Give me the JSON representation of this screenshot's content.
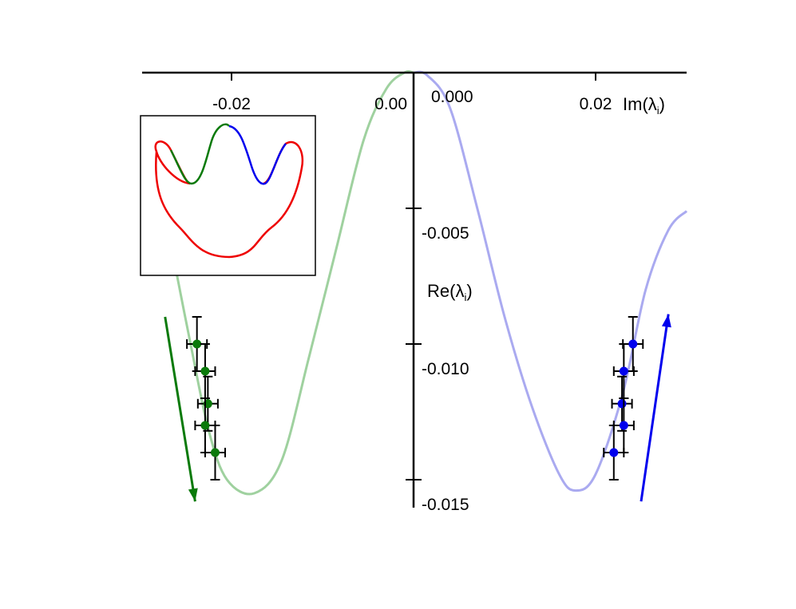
{
  "chart_data": {
    "type": "scatter",
    "xlabel": "Im(λ",
    "xlabel_sub": "i",
    "xlabel_close": ")",
    "ylabel": "Re(λ",
    "ylabel_sub": "i",
    "ylabel_close": ")",
    "xlim": [
      -0.0265,
      0.03
    ],
    "ylim": [
      -0.0158,
      0.0
    ],
    "x_ticks": [
      {
        "value": -0.02,
        "label": "-0.02"
      },
      {
        "value": 0.02,
        "label": "0.02"
      }
    ],
    "x_center_labels": {
      "left": "0.00",
      "right": "0.000"
    },
    "y_ticks": [
      {
        "value": -0.005,
        "label": "-0.005"
      },
      {
        "value": -0.01,
        "label": "-0.010"
      },
      {
        "value": -0.015,
        "label": "-0.015"
      }
    ],
    "grid": false,
    "curves": [
      {
        "color": "#9fd19f",
        "points": [
          [
            -0.0265,
            -0.0066
          ],
          [
            -0.0245,
            -0.01
          ],
          [
            -0.0225,
            -0.0132
          ],
          [
            -0.0205,
            -0.015
          ],
          [
            -0.0175,
            -0.0155
          ],
          [
            -0.0145,
            -0.0143
          ],
          [
            -0.0115,
            -0.0105
          ],
          [
            -0.0085,
            -0.0065
          ],
          [
            -0.0055,
            -0.0025
          ],
          [
            -0.003,
            -0.0006
          ],
          [
            -0.001,
            0.0
          ],
          [
            0.0,
            0.0
          ]
        ]
      },
      {
        "color": "#aaaaf0",
        "points": [
          [
            0.0,
            0.0
          ],
          [
            0.0015,
            -0.0001
          ],
          [
            0.004,
            -0.0013
          ],
          [
            0.007,
            -0.005
          ],
          [
            0.01,
            -0.009
          ],
          [
            0.013,
            -0.0123
          ],
          [
            0.016,
            -0.0148
          ],
          [
            0.0178,
            -0.0154
          ],
          [
            0.02,
            -0.0148
          ],
          [
            0.023,
            -0.0118
          ],
          [
            0.0255,
            -0.008
          ],
          [
            0.028,
            -0.0058
          ],
          [
            0.03,
            -0.0051
          ]
        ]
      }
    ],
    "series": [
      {
        "color": "#0a7a0a",
        "points": [
          {
            "x": -0.0238,
            "y": -0.01,
            "xerr": 0.0011,
            "yerr": 0.001
          },
          {
            "x": -0.0229,
            "y": -0.011,
            "xerr": 0.0011,
            "yerr": 0.001
          },
          {
            "x": -0.0226,
            "y": -0.0122,
            "xerr": 0.0011,
            "yerr": 0.001
          },
          {
            "x": -0.0229,
            "y": -0.013,
            "xerr": 0.0011,
            "yerr": 0.001
          },
          {
            "x": -0.0218,
            "y": -0.014,
            "xerr": 0.0011,
            "yerr": 0.001
          }
        ]
      },
      {
        "color": "#0000ee",
        "points": [
          {
            "x": 0.0241,
            "y": -0.01,
            "xerr": 0.0011,
            "yerr": 0.001
          },
          {
            "x": 0.0231,
            "y": -0.011,
            "xerr": 0.0011,
            "yerr": 0.001
          },
          {
            "x": 0.0229,
            "y": -0.0122,
            "xerr": 0.0011,
            "yerr": 0.001
          },
          {
            "x": 0.0231,
            "y": -0.013,
            "xerr": 0.0011,
            "yerr": 0.001
          },
          {
            "x": 0.022,
            "y": -0.014,
            "xerr": 0.0011,
            "yerr": 0.001
          }
        ]
      }
    ],
    "arrows": [
      {
        "color": "#0a7a0a",
        "from": [
          -0.0273,
          -0.009
        ],
        "to": [
          -0.024,
          -0.0158
        ]
      },
      {
        "color": "#0000ee",
        "from": [
          0.025,
          -0.0158
        ],
        "to": [
          0.028,
          -0.0089
        ]
      }
    ],
    "inset": {
      "left_lobe_color": "#0a7a0a",
      "right_lobe_color": "#0000ee",
      "outline_color": "#ee0000"
    }
  }
}
